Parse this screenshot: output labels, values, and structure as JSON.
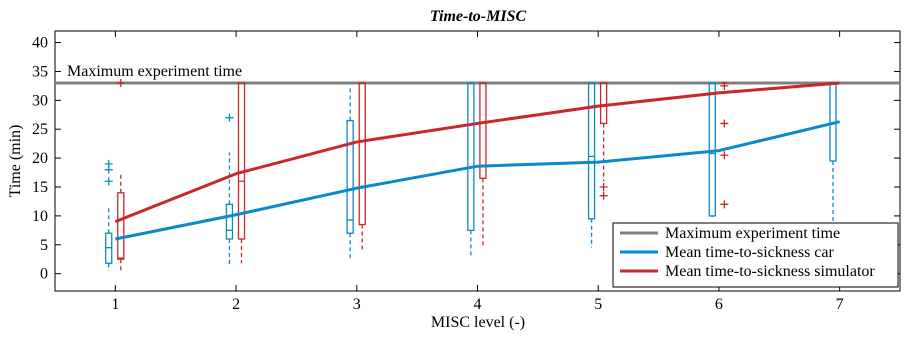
{
  "chart_data": {
    "type": "box+line",
    "title": "Time-to-MISC",
    "xlabel": "MISC level (-)",
    "ylabel": "Time (min)",
    "xlim": [
      0.5,
      7.5
    ],
    "ylim": [
      -3,
      42
    ],
    "x_ticks": [
      "1",
      "2",
      "3",
      "4",
      "5",
      "6",
      "7"
    ],
    "y_ticks": [
      "0",
      "5",
      "10",
      "15",
      "20",
      "25",
      "30",
      "35",
      "40"
    ],
    "grid": false,
    "legend_position": "bottom-right",
    "reference_line": {
      "name": "Maximum experiment time",
      "value": 33,
      "color": "#808080",
      "annotation": "Maximum experiment time"
    },
    "series": [
      {
        "name": "Mean time-to-sickness car",
        "color": "#0a8acb",
        "x": [
          1,
          2,
          3,
          4,
          5,
          6,
          7
        ],
        "mean": [
          6,
          10.2,
          14.8,
          18.6,
          19.3,
          21.3,
          26.3
        ],
        "boxes": [
          {
            "x": 1,
            "whisker_low": 0.5,
            "q1": 1.8,
            "median": 4.5,
            "q3": 7,
            "whisker_high": 11.5,
            "outliers": [
              16,
              18,
              19
            ]
          },
          {
            "x": 2,
            "whisker_low": 1.5,
            "q1": 6,
            "median": 7.5,
            "q3": 12,
            "whisker_high": 21,
            "outliers": [
              27
            ]
          },
          {
            "x": 3,
            "whisker_low": 2.5,
            "q1": 7,
            "median": 9.3,
            "q3": 26.5,
            "whisker_high": 32.5,
            "outliers": []
          },
          {
            "x": 4,
            "whisker_low": 3,
            "q1": 7.5,
            "median": 33,
            "q3": 33,
            "whisker_high": 33,
            "outliers": []
          },
          {
            "x": 5,
            "whisker_low": 4.5,
            "q1": 9.5,
            "median": 20.3,
            "q3": 33,
            "whisker_high": 33,
            "outliers": []
          },
          {
            "x": 6,
            "whisker_low": 9.8,
            "q1": 10,
            "median": 20.8,
            "q3": 33,
            "whisker_high": 33,
            "outliers": []
          },
          {
            "x": 7,
            "whisker_low": 8.5,
            "q1": 19.5,
            "median": 33,
            "q3": 33,
            "whisker_high": 33,
            "outliers": []
          }
        ]
      },
      {
        "name": "Mean time-to-sickness simulator",
        "color": "#c8282c",
        "x": [
          1,
          2,
          3,
          4,
          5,
          6,
          7
        ],
        "mean": [
          9,
          17.3,
          22.8,
          26,
          29,
          31.3,
          33
        ],
        "boxes": [
          {
            "x": 1,
            "whisker_low": 0.5,
            "q1": 2.5,
            "median": 2.7,
            "q3": 14,
            "whisker_high": 17.5,
            "outliers": [
              33
            ]
          },
          {
            "x": 2,
            "whisker_low": 1.8,
            "q1": 6,
            "median": 16,
            "q3": 33,
            "whisker_high": 33,
            "outliers": []
          },
          {
            "x": 3,
            "whisker_low": 3.8,
            "q1": 8.5,
            "median": 33,
            "q3": 33,
            "whisker_high": 33,
            "outliers": []
          },
          {
            "x": 4,
            "whisker_low": 4.5,
            "q1": 16.5,
            "median": 33,
            "q3": 33,
            "whisker_high": 33,
            "outliers": []
          },
          {
            "x": 5,
            "whisker_low": 16,
            "q1": 26,
            "median": 33,
            "q3": 33,
            "whisker_high": 33,
            "outliers": [
              13.5,
              15
            ]
          },
          {
            "x": 6,
            "whisker_low": 33,
            "q1": 33,
            "median": 33,
            "q3": 33,
            "whisker_high": 33,
            "outliers": [
              12,
              20.5,
              26,
              32.5
            ]
          }
        ]
      }
    ]
  }
}
